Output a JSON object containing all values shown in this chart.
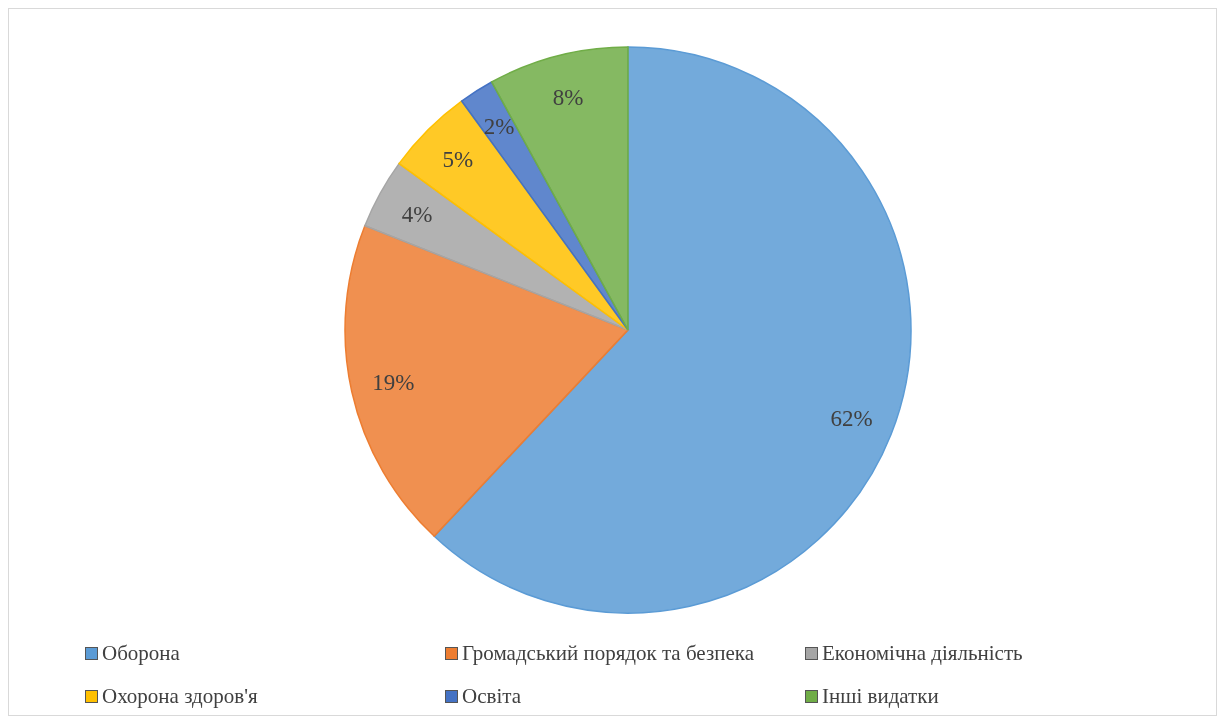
{
  "chart_data": {
    "type": "pie",
    "categories": [
      "Оборона",
      "Громадський порядок та безпека",
      "Економічна діяльність",
      "Охорона здоров'я",
      "Освіта",
      "Інші видатки"
    ],
    "values": [
      62,
      19,
      4,
      5,
      2,
      8
    ],
    "colors": [
      "#5b9bd5",
      "#ed7d31",
      "#a5a5a5",
      "#ffc000",
      "#4472c4",
      "#70ad47"
    ],
    "value_labels": [
      "62%",
      "19%",
      "4%",
      "5%",
      "2%",
      "8%"
    ],
    "legend": "bottom"
  }
}
